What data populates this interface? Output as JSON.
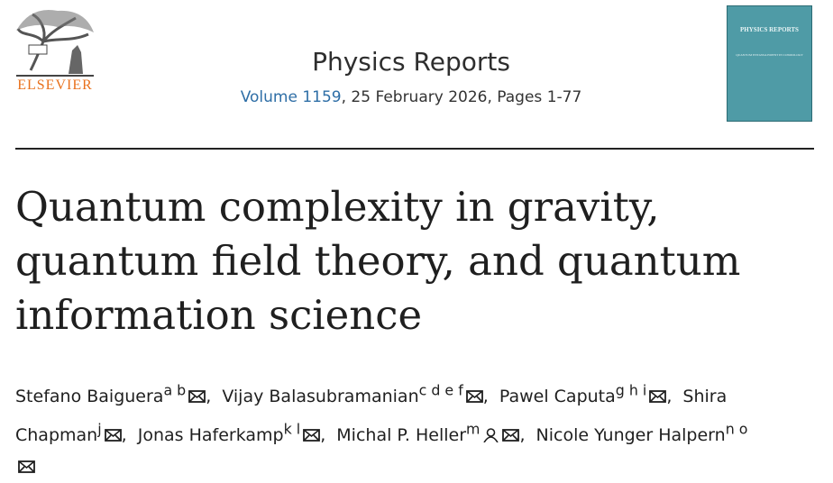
{
  "header": {
    "publisher": "ELSEVIER",
    "journal": "Physics Reports",
    "volume": "Volume 1159",
    "issue_info": ", 25 February 2026, Pages 1-77",
    "cover": {
      "journal": "PHYSICS REPORTS",
      "title": "QUANTUM ENTANGLEMENT IN COSMOLOGY"
    }
  },
  "article": {
    "title": "Quantum complexity in gravity, quantum field theory, and quantum information science",
    "authors": [
      {
        "name": "Stefano Baiguera",
        "affiliations": "a b",
        "separator": ","
      },
      {
        "name": "Vijay Balasubramanian",
        "affiliations": "c d e f",
        "separator": ","
      },
      {
        "name": "Pawel Caputa",
        "affiliations": "g h i",
        "separator": ","
      },
      {
        "name": "Shira Chapman",
        "affiliations": "j",
        "separator": ","
      },
      {
        "name": "Jonas Haferkamp",
        "affiliations": "k l",
        "separator": ","
      },
      {
        "name": "Michal P. Heller",
        "affiliations": "m",
        "separator": ",",
        "corresponding": true
      },
      {
        "name": "Nicole Yunger Halpern",
        "affiliations": "n o"
      }
    ]
  }
}
